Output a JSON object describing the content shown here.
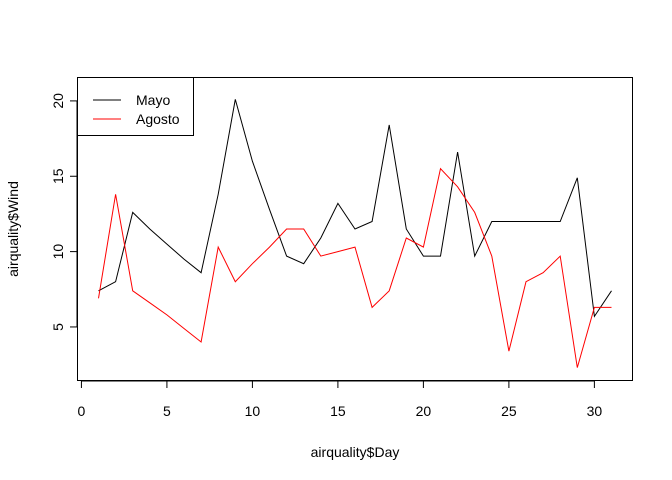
{
  "chart_data": {
    "type": "line",
    "xlabel": "airquality$Day",
    "ylabel": "airquality$Wind",
    "xlim": [
      -0.2,
      32.2
    ],
    "ylim": [
      1.48,
      21.52
    ],
    "xticks": [
      0,
      5,
      10,
      15,
      20,
      25,
      30
    ],
    "yticks": [
      5,
      10,
      15,
      20
    ],
    "legend_position": "top-left",
    "series": [
      {
        "name": "Mayo",
        "color": "#000000",
        "x": [
          1,
          2,
          3,
          4,
          5,
          6,
          7,
          8,
          9,
          10,
          11,
          12,
          13,
          14,
          15,
          16,
          17,
          18,
          19,
          20,
          21,
          22,
          23,
          24,
          25,
          26,
          27,
          28,
          29,
          30,
          31
        ],
        "y": [
          7.4,
          8.0,
          12.6,
          11.5,
          10.5,
          9.5,
          8.6,
          13.8,
          20.1,
          16.0,
          12.8,
          9.7,
          9.2,
          10.9,
          13.2,
          11.5,
          12.0,
          18.4,
          11.5,
          9.7,
          9.7,
          16.6,
          9.7,
          12.0,
          12.0,
          12.0,
          12.0,
          12.0,
          14.9,
          5.7,
          7.4
        ]
      },
      {
        "name": "Agosto",
        "color": "#ff0000",
        "x": [
          1,
          2,
          3,
          4,
          5,
          6,
          7,
          8,
          9,
          10,
          11,
          12,
          13,
          14,
          15,
          16,
          17,
          18,
          19,
          20,
          21,
          22,
          23,
          24,
          25,
          26,
          27,
          28,
          29,
          30,
          31
        ],
        "y": [
          6.9,
          13.8,
          7.4,
          6.6,
          5.8,
          4.9,
          4.0,
          10.3,
          8.0,
          9.2,
          10.3,
          11.5,
          11.5,
          9.7,
          10.0,
          10.3,
          6.3,
          7.4,
          10.9,
          10.3,
          15.5,
          14.3,
          12.6,
          9.7,
          3.4,
          8.0,
          8.6,
          9.7,
          2.3,
          6.3,
          6.3
        ]
      }
    ]
  }
}
